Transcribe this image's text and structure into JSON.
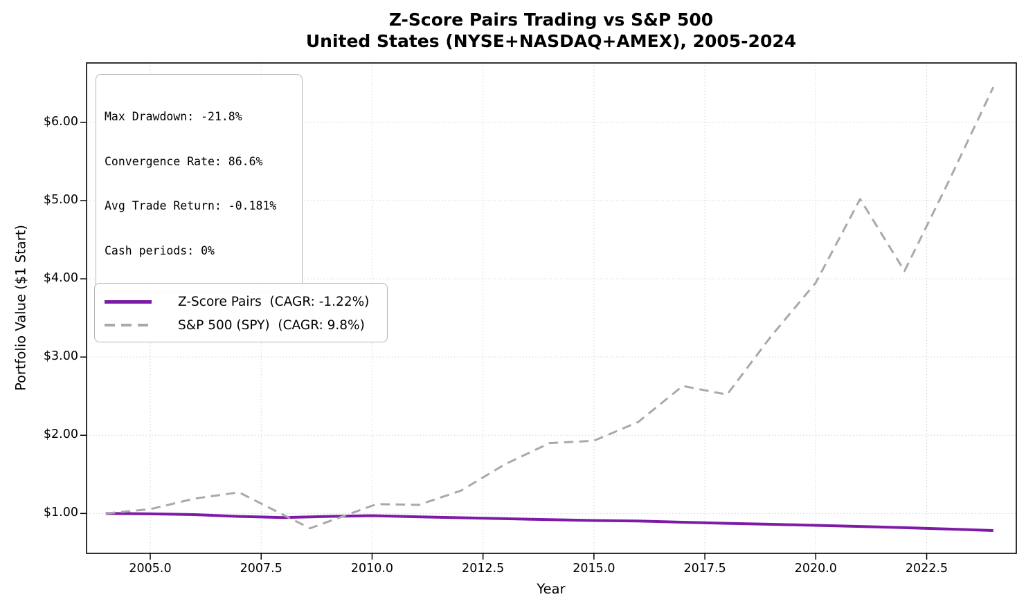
{
  "title": {
    "line1": "Z-Score Pairs Trading vs S&P 500",
    "line2": "United States (NYSE+NASDAQ+AMEX), 2005-2024"
  },
  "stats_box": {
    "lines": [
      "Max Drawdown: -21.8%",
      "Convergence Rate: 86.6%",
      "Avg Trade Return: -0.181%",
      "Cash periods: 0%"
    ]
  },
  "legend": {
    "position": "center-left",
    "items": [
      {
        "label": "Z-Score Pairs  (CAGR: -1.22%)",
        "color": "#7d1ba6",
        "style": "solid"
      },
      {
        "label": "S&P 500 (SPY)  (CAGR: 9.8%)",
        "color": "#a9a9a9",
        "style": "dashed"
      }
    ]
  },
  "chart_data": {
    "type": "line",
    "title": "Z-Score Pairs Trading vs S&P 500\nUnited States (NYSE+NASDAQ+AMEX), 2005-2024",
    "xlabel": "Year",
    "ylabel": "Portfolio Value ($1 Start)",
    "xlim": [
      2003.564,
      2024.52
    ],
    "ylim": [
      0.49,
      6.76
    ],
    "grid": true,
    "grid_style": "dotted",
    "x_ticks": [
      {
        "value": 2005.0,
        "label": "2005.0"
      },
      {
        "value": 2007.5,
        "label": "2007.5"
      },
      {
        "value": 2010.0,
        "label": "2010.0"
      },
      {
        "value": 2012.5,
        "label": "2012.5"
      },
      {
        "value": 2015.0,
        "label": "2015.0"
      },
      {
        "value": 2017.5,
        "label": "2017.5"
      },
      {
        "value": 2020.0,
        "label": "2020.0"
      },
      {
        "value": 2022.5,
        "label": "2022.5"
      }
    ],
    "y_ticks": [
      {
        "value": 1.0,
        "label": "$1.00"
      },
      {
        "value": 2.0,
        "label": "$2.00"
      },
      {
        "value": 3.0,
        "label": "$3.00"
      },
      {
        "value": 4.0,
        "label": "$4.00"
      },
      {
        "value": 5.0,
        "label": "$5.00"
      },
      {
        "value": 6.0,
        "label": "$6.00"
      }
    ],
    "series": [
      {
        "name": "Z-Score Pairs (CAGR: -1.22%)",
        "color": "#7d1ba6",
        "dash": "solid",
        "width": 4,
        "points": [
          [
            2004,
            1.0
          ],
          [
            2005,
            0.995
          ],
          [
            2006,
            0.985
          ],
          [
            2007,
            0.962
          ],
          [
            2008,
            0.948
          ],
          [
            2009,
            0.962
          ],
          [
            2010,
            0.972
          ],
          [
            2011,
            0.958
          ],
          [
            2012,
            0.945
          ],
          [
            2013,
            0.933
          ],
          [
            2014,
            0.921
          ],
          [
            2015,
            0.91
          ],
          [
            2016,
            0.904
          ],
          [
            2017,
            0.888
          ],
          [
            2018,
            0.874
          ],
          [
            2019,
            0.861
          ],
          [
            2020,
            0.848
          ],
          [
            2021,
            0.834
          ],
          [
            2022,
            0.818
          ],
          [
            2023,
            0.8
          ],
          [
            2024,
            0.782
          ]
        ]
      },
      {
        "name": "S&P 500 (SPY) (CAGR: 9.8%)",
        "color": "#a9a9a9",
        "dash": "dashed",
        "width": 3,
        "points": [
          [
            2004,
            1.0
          ],
          [
            2005,
            1.055
          ],
          [
            2006,
            1.19
          ],
          [
            2007,
            1.27
          ],
          [
            2008.6,
            0.81
          ],
          [
            2010.1,
            1.12
          ],
          [
            2011.05,
            1.11
          ],
          [
            2012,
            1.29
          ],
          [
            2013,
            1.63
          ],
          [
            2014,
            1.9
          ],
          [
            2015,
            1.93
          ],
          [
            2016,
            2.17
          ],
          [
            2017,
            2.63
          ],
          [
            2018,
            2.52
          ],
          [
            2019,
            3.27
          ],
          [
            2020,
            3.95
          ],
          [
            2021,
            5.02
          ],
          [
            2022,
            4.1
          ],
          [
            2023,
            5.25
          ],
          [
            2024,
            6.45
          ]
        ]
      }
    ]
  }
}
